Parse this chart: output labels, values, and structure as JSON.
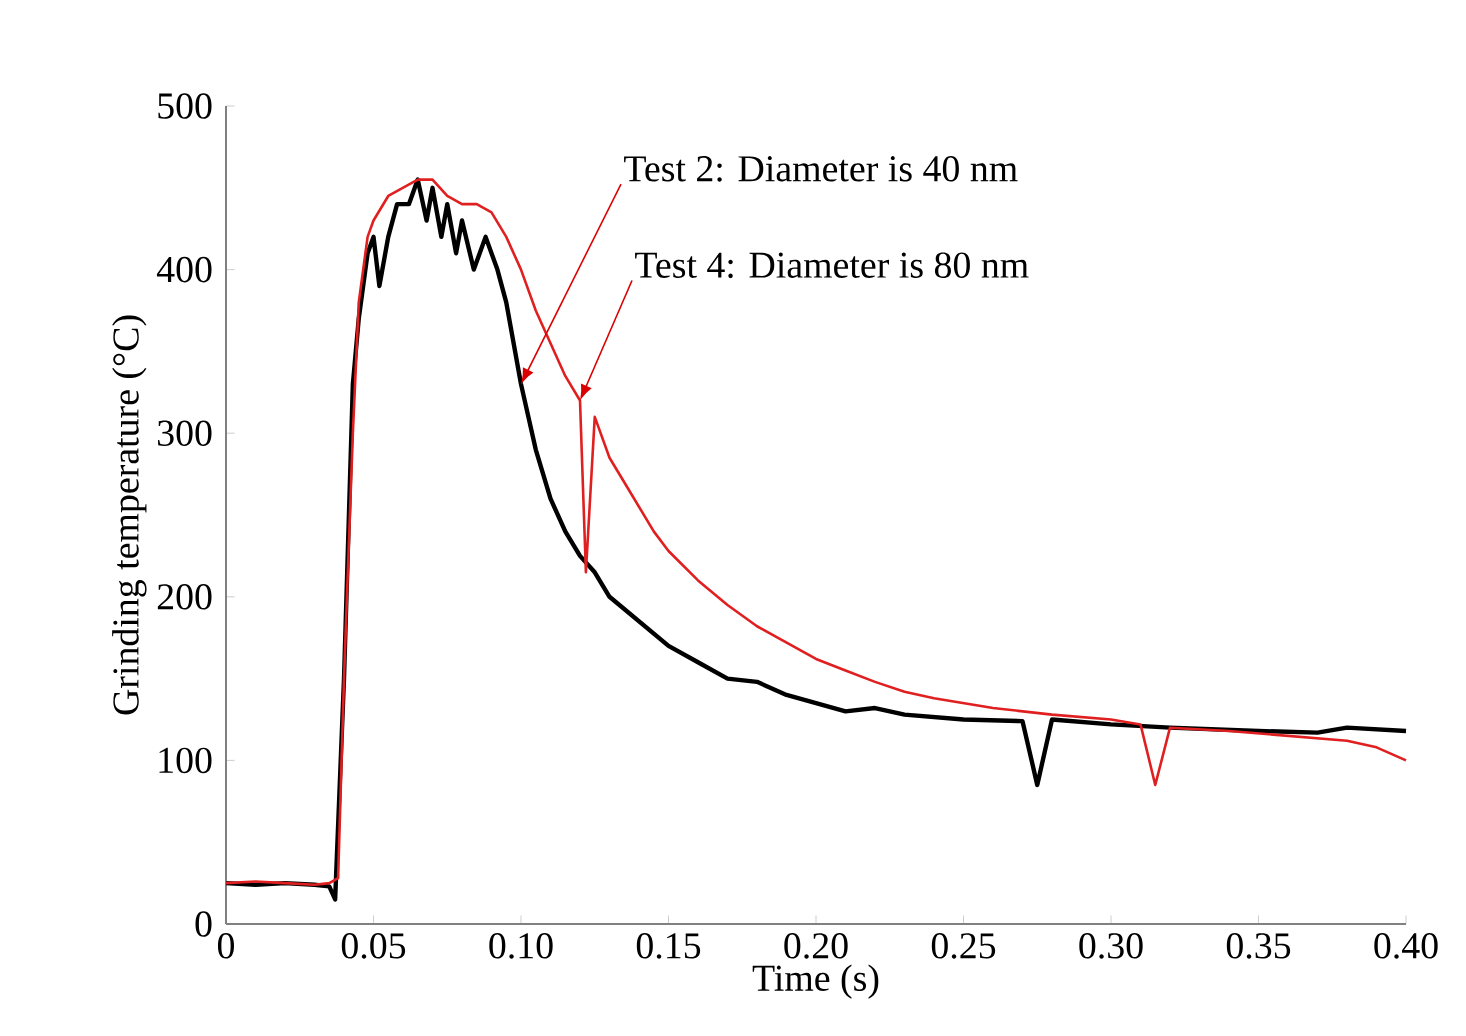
{
  "chart_data": {
    "type": "line",
    "xlabel": "Time (s)",
    "ylabel": "Grinding temperature (°C)",
    "xlim": [
      0,
      0.4
    ],
    "ylim": [
      0,
      500
    ],
    "xticks": [
      0,
      {
        "value": 0.05,
        "label": "0.05"
      },
      {
        "value": 0.1,
        "label": "0.10"
      },
      {
        "value": 0.15,
        "label": "0.15"
      },
      {
        "value": 0.2,
        "label": "0.20"
      },
      {
        "value": 0.25,
        "label": "0.25"
      },
      {
        "value": 0.3,
        "label": "0.30"
      },
      {
        "value": 0.35,
        "label": "0.35"
      },
      {
        "value": 0.4,
        "label": "0.40"
      }
    ],
    "yticks": [
      0,
      100,
      200,
      300,
      400,
      500
    ],
    "grid": false,
    "marker": "none",
    "line_style": "solid",
    "series": [
      {
        "color": "#000000",
        "x": [
          0,
          0.01,
          0.02,
          0.03,
          0.035,
          0.037,
          0.04,
          0.043,
          0.045,
          0.048,
          0.05,
          0.052,
          0.055,
          0.058,
          0.062,
          0.065,
          0.068,
          0.07,
          0.073,
          0.075,
          0.078,
          0.08,
          0.084,
          0.088,
          0.092,
          0.095,
          0.1,
          0.105,
          0.11,
          0.115,
          0.12,
          0.125,
          0.13,
          0.14,
          0.15,
          0.16,
          0.17,
          0.18,
          0.19,
          0.2,
          0.21,
          0.22,
          0.23,
          0.25,
          0.27,
          0.275,
          0.28,
          0.3,
          0.32,
          0.35,
          0.37,
          0.38,
          0.4
        ],
        "values": [
          25,
          24,
          25,
          24,
          23,
          15,
          150,
          330,
          370,
          410,
          420,
          390,
          420,
          440,
          440,
          455,
          430,
          450,
          420,
          440,
          410,
          430,
          400,
          420,
          400,
          380,
          330,
          290,
          260,
          240,
          225,
          215,
          200,
          185,
          170,
          160,
          150,
          148,
          140,
          135,
          130,
          132,
          128,
          125,
          124,
          85,
          125,
          122,
          120,
          118,
          117,
          120,
          118
        ]
      },
      {
        "color": "#e02020",
        "x": [
          0,
          0.01,
          0.02,
          0.03,
          0.035,
          0.038,
          0.04,
          0.043,
          0.045,
          0.048,
          0.05,
          0.055,
          0.06,
          0.065,
          0.07,
          0.075,
          0.08,
          0.085,
          0.09,
          0.095,
          0.1,
          0.105,
          0.11,
          0.115,
          0.12,
          0.122,
          0.125,
          0.13,
          0.135,
          0.14,
          0.145,
          0.15,
          0.16,
          0.17,
          0.18,
          0.19,
          0.2,
          0.21,
          0.22,
          0.23,
          0.24,
          0.25,
          0.26,
          0.28,
          0.3,
          0.31,
          0.315,
          0.32,
          0.34,
          0.36,
          0.38,
          0.39,
          0.4
        ],
        "values": [
          25,
          26,
          25,
          24,
          25,
          28,
          150,
          300,
          380,
          420,
          430,
          445,
          450,
          455,
          455,
          445,
          440,
          440,
          435,
          420,
          400,
          375,
          355,
          335,
          320,
          215,
          310,
          285,
          270,
          255,
          240,
          228,
          210,
          195,
          182,
          172,
          162,
          155,
          148,
          142,
          138,
          135,
          132,
          128,
          125,
          122,
          85,
          120,
          118,
          115,
          112,
          108,
          100
        ]
      }
    ],
    "annotations": [
      {
        "text": "Test 2: Diameter is 40 nm",
        "x": 0.1,
        "y": 330
      },
      {
        "text": "Test 4: Diameter is 80 nm",
        "x": 0.12,
        "y": 320
      }
    ]
  }
}
